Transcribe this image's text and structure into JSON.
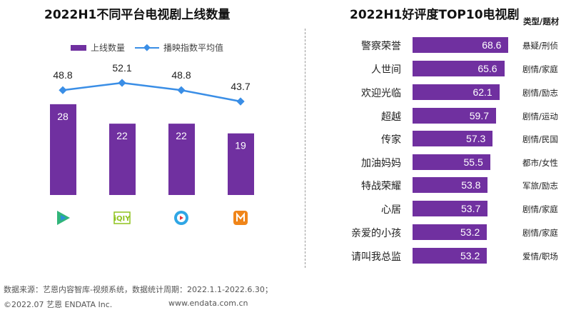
{
  "chart_data": [
    {
      "type": "bar+line",
      "title": "2022H1不同平台电视剧上线数量",
      "categories_icons": [
        "tencent-video-icon",
        "iqiyi-icon",
        "youku-icon",
        "mango-tv-icon"
      ],
      "series": [
        {
          "name": "上线数量",
          "type": "bar",
          "values": [
            28,
            22,
            22,
            19
          ],
          "color": "#7030a0"
        },
        {
          "name": "播映指数平均值",
          "type": "line",
          "values": [
            48.8,
            52.1,
            48.8,
            43.7
          ],
          "color": "#3a8ee6"
        }
      ],
      "legend": "top"
    },
    {
      "type": "bar",
      "orientation": "horizontal",
      "title": "2022H1好评度TOP10电视剧",
      "column_header": "类型/题材",
      "categories": [
        "警察荣誉",
        "人世间",
        "欢迎光临",
        "超越",
        "传家",
        "加油妈妈",
        "特战荣耀",
        "心居",
        "亲爱的小孩",
        "请叫我总监"
      ],
      "values": [
        68.6,
        65.6,
        62.1,
        59.7,
        57.3,
        55.5,
        53.8,
        53.7,
        53.2,
        53.2
      ],
      "genres": [
        "悬疑/刑侦",
        "剧情/家庭",
        "剧情/励志",
        "剧情/运动",
        "剧情/民国",
        "都市/女性",
        "军旅/励志",
        "剧情/家庭",
        "剧情/家庭",
        "爱情/职场"
      ],
      "color": "#7030a0"
    }
  ],
  "footer": {
    "source": "数据来源：艺恩内容智库-视频系统，数据统计周期：2022.1.1-2022.6.30；",
    "copyright": "©2022.07 艺恩 ENDATA Inc.",
    "website": "www.endata.com.cn"
  }
}
